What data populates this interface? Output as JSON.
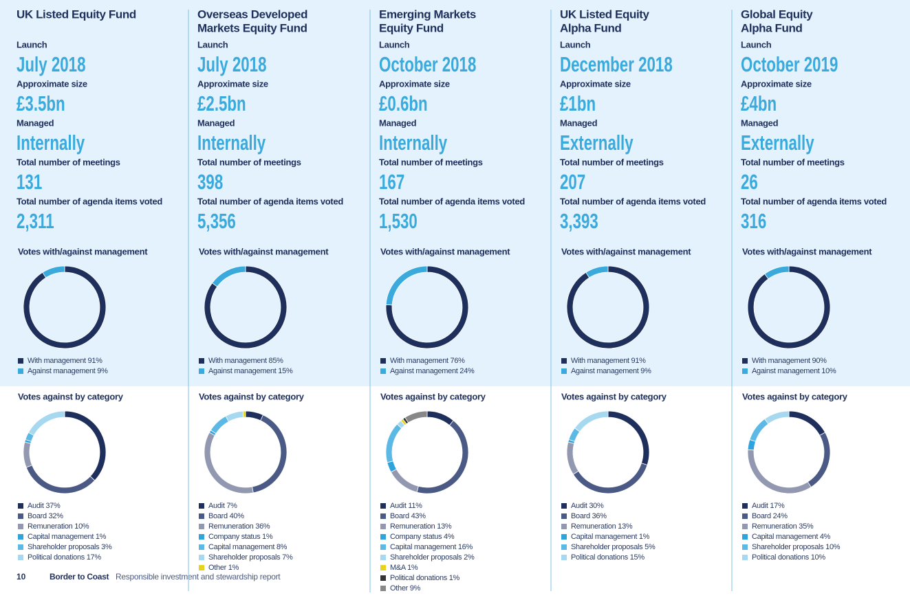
{
  "funds": [
    {
      "name": [
        "UK Listed Equity Fund"
      ],
      "fields": [
        {
          "label": "Launch",
          "value": "July 2018"
        },
        {
          "label": "Approximate size",
          "value": "£3.5bn"
        },
        {
          "label": "Managed",
          "value": "Internally"
        },
        {
          "label": "Total number of meetings",
          "value": "131"
        },
        {
          "label": "Total number of agenda items voted",
          "value": "2,311"
        }
      ],
      "charts": [
        {
          "type": "donut",
          "title": "Votes with/against management",
          "segments": [
            {
              "label": "With management 91%",
              "value": 91,
              "color": "#1f2f5c"
            },
            {
              "label": "Against management 9%",
              "value": 9,
              "color": "#3aa9dc"
            }
          ]
        },
        {
          "type": "donut",
          "title": "Votes against by category",
          "segments": [
            {
              "label": "Audit 37%",
              "value": 37,
              "color": "#1f2f5c"
            },
            {
              "label": "Board 32%",
              "value": 32,
              "color": "#4a5a85"
            },
            {
              "label": "Remuneration 10%",
              "value": 10,
              "color": "#9298b0"
            },
            {
              "label": "Capital management 1%",
              "value": 1,
              "color": "#2ea3dc"
            },
            {
              "label": "Shareholder proposals 3%",
              "value": 3,
              "color": "#5cb8e4"
            },
            {
              "label": "Political donations 17%",
              "value": 17,
              "color": "#a6d8f0"
            }
          ]
        }
      ]
    },
    {
      "name": [
        "Overseas Developed",
        "Markets Equity Fund"
      ],
      "fields": [
        {
          "label": "Launch",
          "value": "July 2018"
        },
        {
          "label": "Approximate size",
          "value": "£2.5bn"
        },
        {
          "label": "Managed",
          "value": "Internally"
        },
        {
          "label": "Total number of meetings",
          "value": "398"
        },
        {
          "label": "Total number of agenda items voted",
          "value": "5,356"
        }
      ],
      "charts": [
        {
          "type": "donut",
          "title": "Votes with/against management",
          "segments": [
            {
              "label": "With management 85%",
              "value": 85,
              "color": "#1f2f5c"
            },
            {
              "label": "Against management 15%",
              "value": 15,
              "color": "#3aa9dc"
            }
          ]
        },
        {
          "type": "donut",
          "title": "Votes against by category",
          "segments": [
            {
              "label": "Audit 7%",
              "value": 7,
              "color": "#1f2f5c"
            },
            {
              "label": "Board 40%",
              "value": 40,
              "color": "#4a5a85"
            },
            {
              "label": "Remuneration 36%",
              "value": 36,
              "color": "#9298b0"
            },
            {
              "label": "Company status 1%",
              "value": 1,
              "color": "#2ea3dc"
            },
            {
              "label": "Capital management 8%",
              "value": 8,
              "color": "#5cb8e4"
            },
            {
              "label": "Shareholder proposals 7%",
              "value": 7,
              "color": "#a6d8f0"
            },
            {
              "label": "Other 1%",
              "value": 1,
              "color": "#e8d21d"
            }
          ]
        }
      ]
    },
    {
      "name": [
        "Emerging Markets",
        "Equity Fund"
      ],
      "fields": [
        {
          "label": "Launch",
          "value": "October 2018"
        },
        {
          "label": "Approximate size",
          "value": "£0.6bn"
        },
        {
          "label": "Managed",
          "value": "Internally"
        },
        {
          "label": "Total number of meetings",
          "value": "167"
        },
        {
          "label": "Total number of agenda items voted",
          "value": "1,530"
        }
      ],
      "charts": [
        {
          "type": "donut",
          "title": "Votes with/against management",
          "segments": [
            {
              "label": "With management 76%",
              "value": 76,
              "color": "#1f2f5c"
            },
            {
              "label": "Against management 24%",
              "value": 24,
              "color": "#3aa9dc"
            }
          ]
        },
        {
          "type": "donut",
          "title": "Votes against by category",
          "segments": [
            {
              "label": "Audit 11%",
              "value": 11,
              "color": "#1f2f5c"
            },
            {
              "label": "Board 43%",
              "value": 43,
              "color": "#4a5a85"
            },
            {
              "label": "Remuneration 13%",
              "value": 13,
              "color": "#9298b0"
            },
            {
              "label": "Company status 4%",
              "value": 4,
              "color": "#2ea3dc"
            },
            {
              "label": "Capital management 16%",
              "value": 16,
              "color": "#5cb8e4"
            },
            {
              "label": "Shareholder proposals 2%",
              "value": 2,
              "color": "#a6d8f0"
            },
            {
              "label": "M&A 1%",
              "value": 1,
              "color": "#e8d21d"
            },
            {
              "label": "Political donations 1%",
              "value": 1,
              "color": "#333333"
            },
            {
              "label": "Other 9%",
              "value": 9,
              "color": "#888888"
            }
          ]
        }
      ]
    },
    {
      "name": [
        "UK Listed Equity",
        "Alpha Fund"
      ],
      "fields": [
        {
          "label": "Launch",
          "value": "December 2018"
        },
        {
          "label": "Approximate size",
          "value": "£1bn"
        },
        {
          "label": "Managed",
          "value": "Externally"
        },
        {
          "label": "Total number of meetings",
          "value": "207"
        },
        {
          "label": "Total number of agenda items voted",
          "value": "3,393"
        }
      ],
      "charts": [
        {
          "type": "donut",
          "title": "Votes with/against management",
          "segments": [
            {
              "label": "With management 91%",
              "value": 91,
              "color": "#1f2f5c"
            },
            {
              "label": "Against management 9%",
              "value": 9,
              "color": "#3aa9dc"
            }
          ]
        },
        {
          "type": "donut",
          "title": "Votes against by category",
          "segments": [
            {
              "label": "Audit 30%",
              "value": 30,
              "color": "#1f2f5c"
            },
            {
              "label": "Board 36%",
              "value": 36,
              "color": "#4a5a85"
            },
            {
              "label": "Remuneration 13%",
              "value": 13,
              "color": "#9298b0"
            },
            {
              "label": "Capital management 1%",
              "value": 1,
              "color": "#2ea3dc"
            },
            {
              "label": "Shareholder proposals 5%",
              "value": 5,
              "color": "#5cb8e4"
            },
            {
              "label": "Political donations 15%",
              "value": 15,
              "color": "#a6d8f0"
            }
          ]
        }
      ]
    },
    {
      "name": [
        "Global Equity",
        "Alpha Fund"
      ],
      "fields": [
        {
          "label": "Launch",
          "value": "October 2019"
        },
        {
          "label": "Approximate size",
          "value": "£4bn"
        },
        {
          "label": "Managed",
          "value": "Externally"
        },
        {
          "label": "Total number of meetings",
          "value": "26"
        },
        {
          "label": "Total number of agenda items voted",
          "value": "316"
        }
      ],
      "charts": [
        {
          "type": "donut",
          "title": "Votes with/against management",
          "segments": [
            {
              "label": "With management 90%",
              "value": 90,
              "color": "#1f2f5c"
            },
            {
              "label": "Against management 10%",
              "value": 10,
              "color": "#3aa9dc"
            }
          ]
        },
        {
          "type": "donut",
          "title": "Votes against by category",
          "segments": [
            {
              "label": "Audit 17%",
              "value": 17,
              "color": "#1f2f5c"
            },
            {
              "label": "Board 24%",
              "value": 24,
              "color": "#4a5a85"
            },
            {
              "label": "Remuneration 35%",
              "value": 35,
              "color": "#9298b0"
            },
            {
              "label": "Capital management 4%",
              "value": 4,
              "color": "#2ea3dc"
            },
            {
              "label": "Shareholder proposals 10%",
              "value": 10,
              "color": "#5cb8e4"
            },
            {
              "label": "Political donations 10%",
              "value": 10,
              "color": "#a6d8f0"
            }
          ]
        }
      ]
    }
  ],
  "footer": {
    "page": "10",
    "brand": "Border to Coast",
    "title": "Responsible investment and stewardship report"
  }
}
